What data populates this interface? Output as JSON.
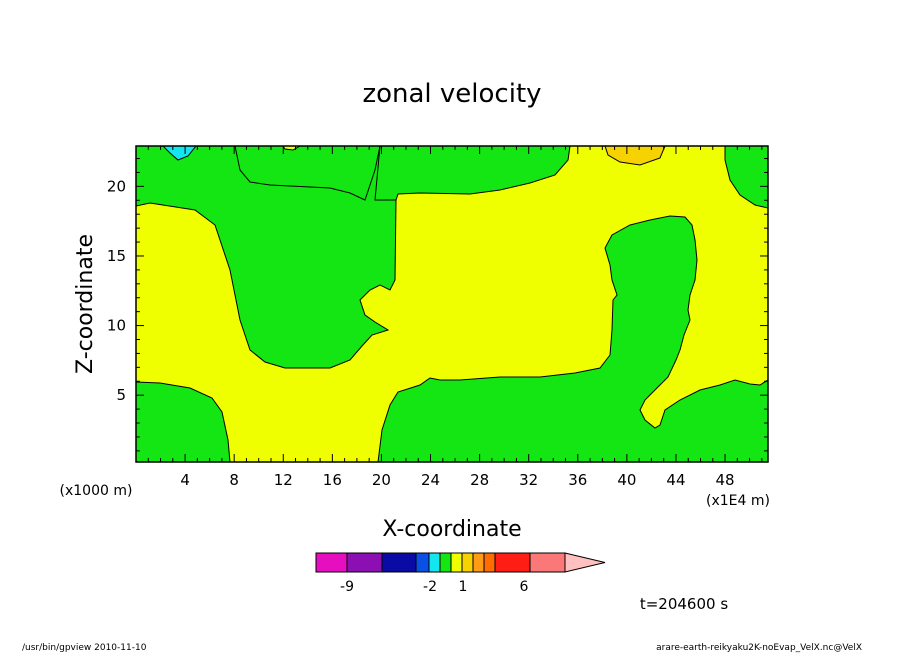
{
  "chart_data": {
    "type": "heatmap",
    "title": "zonal velocity",
    "xlabel": "X-coordinate",
    "ylabel": "Z-coordinate",
    "x_scale_note": "(x1E4 m)",
    "y_scale_note": "(x1000 m)",
    "xlim": [
      0,
      51.5
    ],
    "ylim": [
      0.2,
      22.9
    ],
    "xticks": [
      4,
      8,
      12,
      16,
      20,
      24,
      28,
      32,
      36,
      40,
      44,
      48
    ],
    "yticks": [
      5,
      10,
      15,
      20
    ],
    "colorbar": {
      "labels": [
        {
          "text": "-9",
          "bin": 1
        },
        {
          "text": "-2",
          "bin": 5
        },
        {
          "text": "1",
          "bin": 7
        },
        {
          "text": "6",
          "bin": 9
        }
      ],
      "bins": [
        "#e60fbf",
        "#8c0fb4",
        "#0a0aa5",
        "#0a50e6",
        "#14e6f0",
        "#14e614",
        "#f0ff00",
        "#f5d200",
        "#ff9b14",
        "#ff6c00",
        "#ff1e14",
        "#fa7878"
      ],
      "colors": [
        "#e60fbf",
        "#8c0fb4",
        "#0a0aa5",
        "#0a0aa5",
        "#0a50e6",
        "#14e6f0",
        "#14e614",
        "#f0ff00",
        "#f5d200",
        "#f5d200",
        "#ff9b14",
        "#ff6c00",
        "#ff6c00",
        "#ff1e14",
        "#ff1e14",
        "#fa7878",
        "#fa7878",
        "#ffc0c0"
      ],
      "boundaries": [
        "-9",
        "-8",
        "-7",
        "-6",
        "-5",
        "-4",
        "-3",
        "-2",
        "-1",
        "0",
        "1",
        "2",
        "3",
        "4",
        "5",
        "6",
        "7",
        "8",
        "9"
      ]
    },
    "regions": [
      {
        "value_band": "0 to 1",
        "color": "#14e614",
        "description": "green (0-1) regions"
      },
      {
        "value_band": "1 to 2",
        "color": "#f0ff00",
        "description": "yellow (1-2) regions"
      },
      {
        "value_band": "2 to 3",
        "color": "#f5d200",
        "description": "orange patch near x=40 top"
      },
      {
        "value_band": "-1 to 0",
        "color": "#14e6f0",
        "description": "cyan patch near x=3 top"
      }
    ]
  },
  "time_label": "t=204600 s",
  "footer": {
    "left": "/usr/bin/gpview  2010-11-10",
    "right": "arare-earth-reikyaku2K-noEvap_VelX.nc@VelX"
  }
}
